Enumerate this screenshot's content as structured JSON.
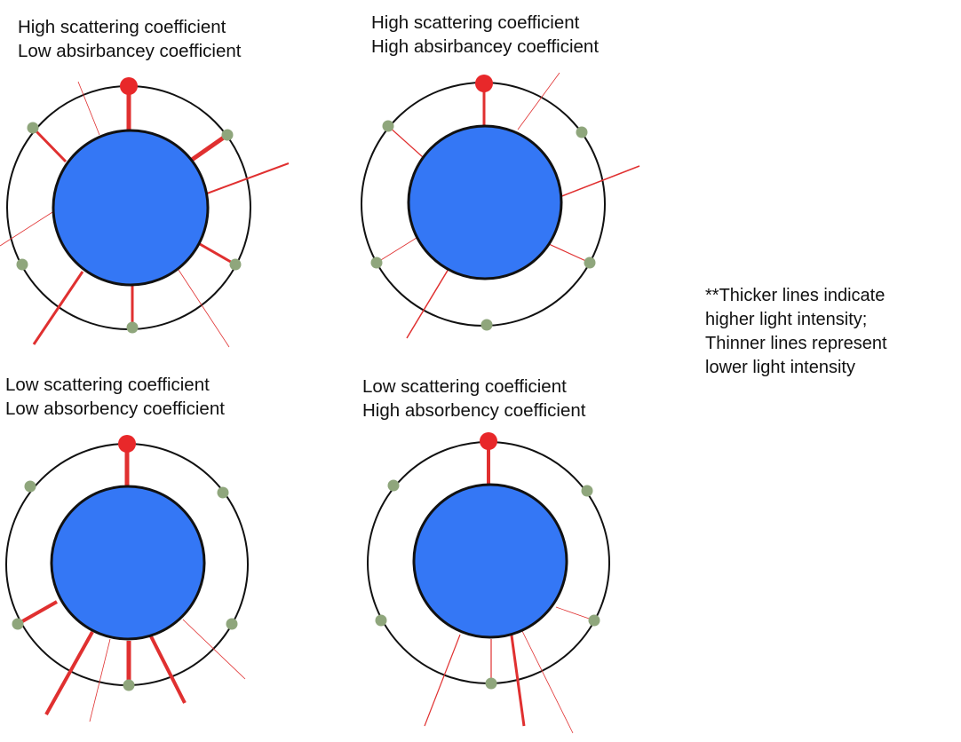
{
  "panels": [
    {
      "line1": "High scattering coefficient",
      "line2": "Low absirbancey coefficient"
    },
    {
      "line1": "High scattering coefficient",
      "line2": "High absirbancey coefficient"
    },
    {
      "line1": "Low scattering coefficient",
      "line2": "Low absorbency coefficient"
    },
    {
      "line1": "Low scattering coefficient",
      "line2": "High absorbency coefficient"
    }
  ],
  "note": {
    "line1": "**Thicker lines indicate",
    "line2": "higher light intensity;",
    "line3": "Thinner lines represent",
    "line4": "lower light intensity"
  },
  "colors": {
    "tissue": "#3477f5",
    "source": "#e8282a",
    "ray": "#e03030",
    "detector": "#8fa67c",
    "ring": "#111111"
  }
}
